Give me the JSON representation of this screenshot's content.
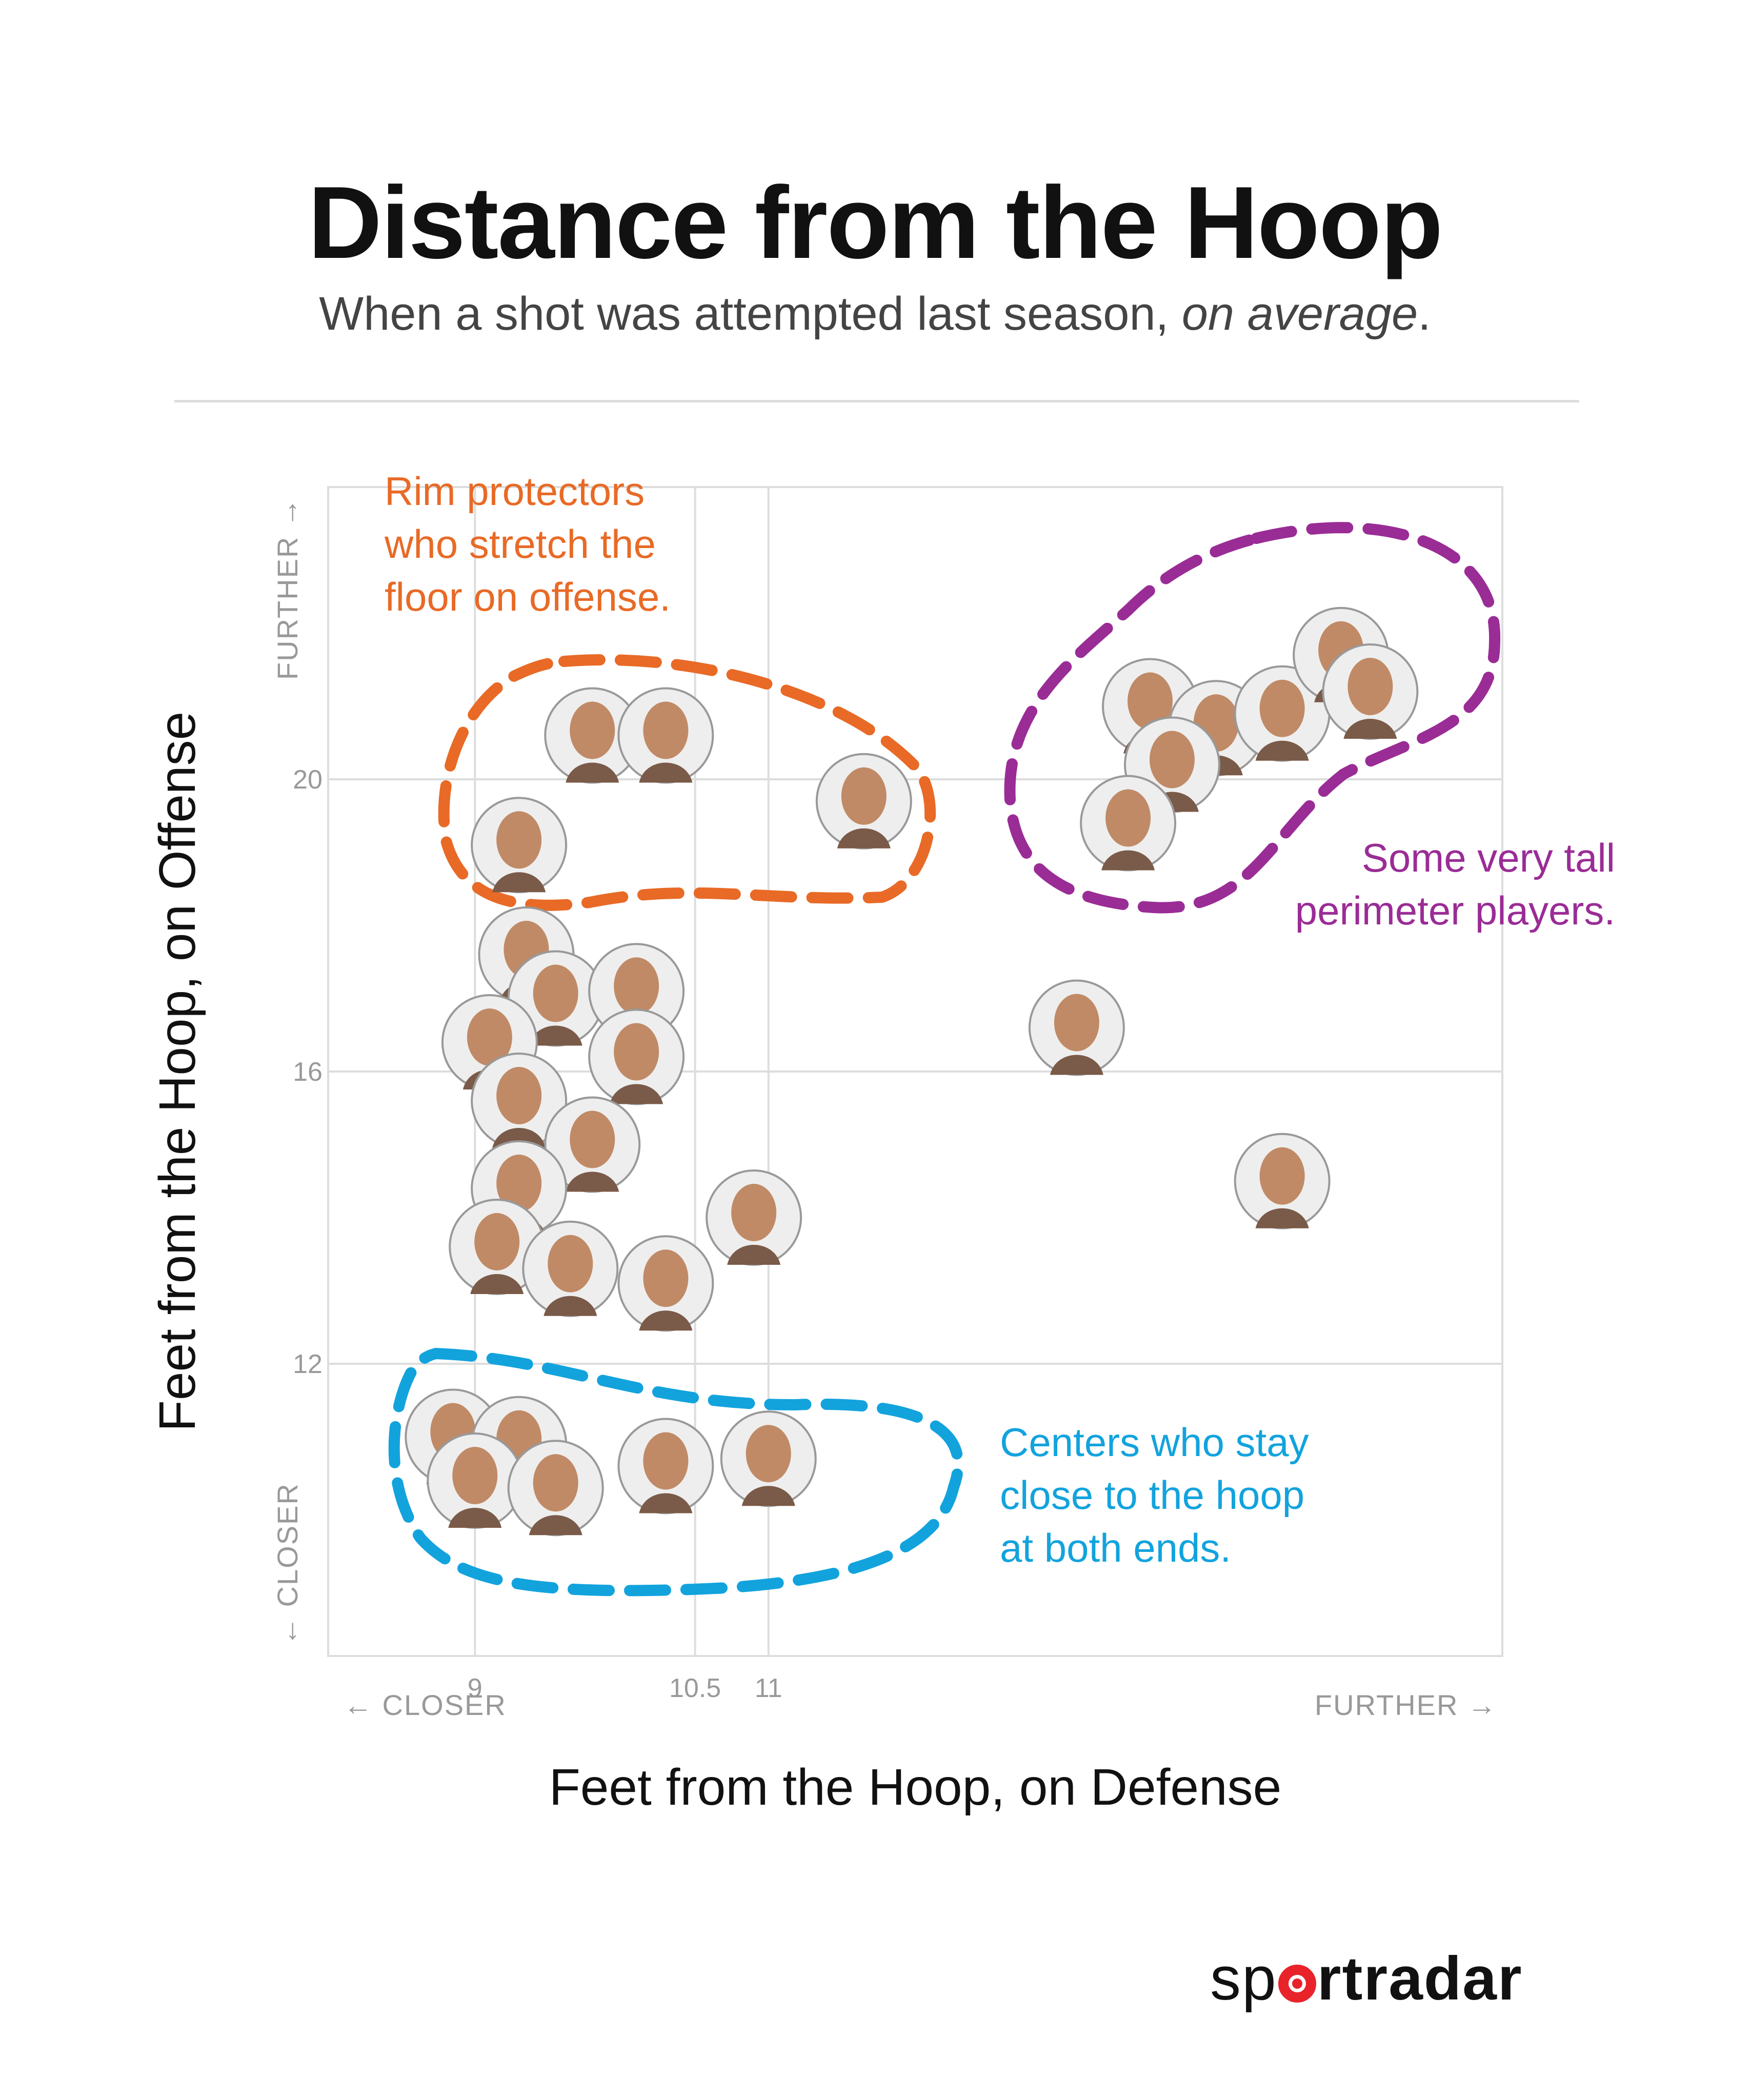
{
  "chart_data": {
    "type": "scatter",
    "title": "Distance from the Hoop",
    "subtitle_prefix": "When a shot was attempted last season, ",
    "subtitle_emphasis": "on average",
    "subtitle_suffix": ".",
    "xlabel": "Feet from the Hoop, on Defense",
    "ylabel": "Feet from the Hoop, on Offense",
    "x_axis_ticks": [
      {
        "value": 9,
        "label": "9"
      },
      {
        "value": 10.5,
        "label": "10.5"
      },
      {
        "value": 11,
        "label": "11"
      }
    ],
    "y_axis_ticks": [
      {
        "value": 12,
        "label": "12"
      },
      {
        "value": 16,
        "label": "16"
      },
      {
        "value": 20,
        "label": "20"
      }
    ],
    "x_direction_labels": {
      "low": "← CLOSER",
      "high": "FURTHER →"
    },
    "y_direction_labels": {
      "low": "← CLOSER",
      "high": "FURTHER →"
    },
    "grid": true,
    "points": [
      {
        "x": 9.8,
        "y": 20.6
      },
      {
        "x": 10.3,
        "y": 20.6
      },
      {
        "x": 9.3,
        "y": 19.1
      },
      {
        "x": 11.65,
        "y": 19.7
      },
      {
        "x": 13.6,
        "y": 21.0
      },
      {
        "x": 14.05,
        "y": 20.7
      },
      {
        "x": 13.75,
        "y": 20.2
      },
      {
        "x": 13.45,
        "y": 19.4
      },
      {
        "x": 14.5,
        "y": 20.9
      },
      {
        "x": 14.9,
        "y": 21.7
      },
      {
        "x": 15.1,
        "y": 21.2
      },
      {
        "x": 9.35,
        "y": 17.6
      },
      {
        "x": 9.55,
        "y": 17.0
      },
      {
        "x": 10.1,
        "y": 17.1
      },
      {
        "x": 9.1,
        "y": 16.4
      },
      {
        "x": 10.1,
        "y": 16.2
      },
      {
        "x": 9.3,
        "y": 15.6
      },
      {
        "x": 9.8,
        "y": 15.0
      },
      {
        "x": 9.3,
        "y": 14.4
      },
      {
        "x": 10.9,
        "y": 14.0
      },
      {
        "x": 9.15,
        "y": 13.6
      },
      {
        "x": 9.65,
        "y": 13.3
      },
      {
        "x": 10.3,
        "y": 13.1
      },
      {
        "x": 13.1,
        "y": 16.6
      },
      {
        "x": 14.5,
        "y": 14.5
      },
      {
        "x": 8.85,
        "y": 11.0
      },
      {
        "x": 9.3,
        "y": 10.9
      },
      {
        "x": 9.0,
        "y": 10.4
      },
      {
        "x": 9.55,
        "y": 10.3
      },
      {
        "x": 10.3,
        "y": 10.6
      },
      {
        "x": 11.0,
        "y": 10.7
      }
    ],
    "annotations": [
      {
        "id": "rim",
        "lines": [
          "Rim protectors",
          "who stretch the",
          "floor on offense."
        ],
        "color": "#e86a26"
      },
      {
        "id": "tall",
        "lines": [
          "Some very tall",
          "perimeter players."
        ],
        "color": "#9a2c96"
      },
      {
        "id": "centers",
        "lines": [
          "Centers who stay",
          "close to the hoop",
          "at both ends."
        ],
        "color": "#12a3dd"
      }
    ]
  },
  "logo": {
    "part1": "sp",
    "part2": "rt",
    "part3": "radar"
  },
  "colors": {
    "gridline": "#dddddd",
    "axis_text": "#999999",
    "face_fill": "#eeeeee"
  }
}
